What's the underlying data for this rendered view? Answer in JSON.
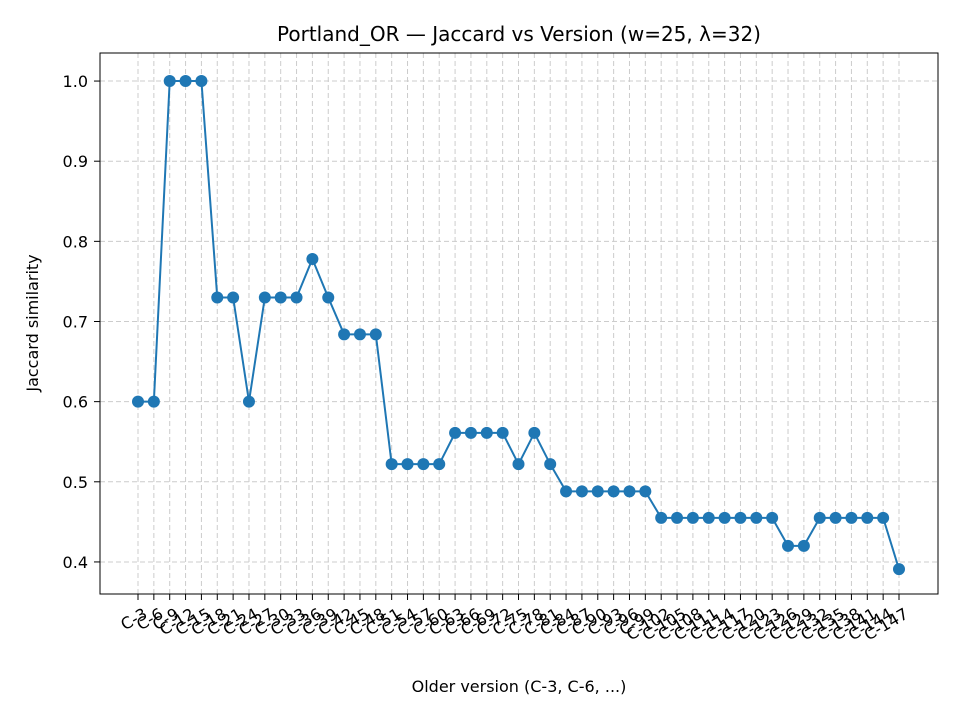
{
  "chart_data": {
    "type": "line",
    "title": "Portland_OR — Jaccard vs Version (w=25, λ=32)",
    "xlabel": "Older version (C-3, C-6, ...)",
    "ylabel": "Jaccard similarity",
    "ylim": [
      0.36,
      1.035
    ],
    "yticks": [
      "0.4",
      "0.5",
      "0.6",
      "0.7",
      "0.8",
      "0.9",
      "1.0"
    ],
    "grid": true,
    "color": "#1f77b4",
    "categories": [
      "C-3",
      "C-6",
      "C-9",
      "C-12",
      "C-15",
      "C-18",
      "C-21",
      "C-24",
      "C-27",
      "C-30",
      "C-33",
      "C-36",
      "C-39",
      "C-42",
      "C-45",
      "C-48",
      "C-51",
      "C-54",
      "C-57",
      "C-60",
      "C-63",
      "C-66",
      "C-69",
      "C-72",
      "C-75",
      "C-78",
      "C-81",
      "C-84",
      "C-87",
      "C-90",
      "C-93",
      "C-96",
      "C-99",
      "C-102",
      "C-105",
      "C-108",
      "C-111",
      "C-114",
      "C-117",
      "C-120",
      "C-123",
      "C-126",
      "C-129",
      "C-132",
      "C-135",
      "C-138",
      "C-141",
      "C-144",
      "C-147"
    ],
    "series": [
      {
        "values": [
          0.6,
          0.6,
          1.0,
          1.0,
          1.0,
          0.73,
          0.73,
          0.6,
          0.73,
          0.73,
          0.73,
          0.778,
          0.73,
          0.684,
          0.684,
          0.684,
          0.522,
          0.522,
          0.522,
          0.522,
          0.561,
          0.561,
          0.561,
          0.561,
          0.522,
          0.561,
          0.522,
          0.488,
          0.488,
          0.488,
          0.488,
          0.488,
          0.488,
          0.455,
          0.455,
          0.455,
          0.455,
          0.455,
          0.455,
          0.455,
          0.455,
          0.42,
          0.42,
          0.455,
          0.455,
          0.455,
          0.455,
          0.455,
          0.391
        ]
      }
    ]
  }
}
